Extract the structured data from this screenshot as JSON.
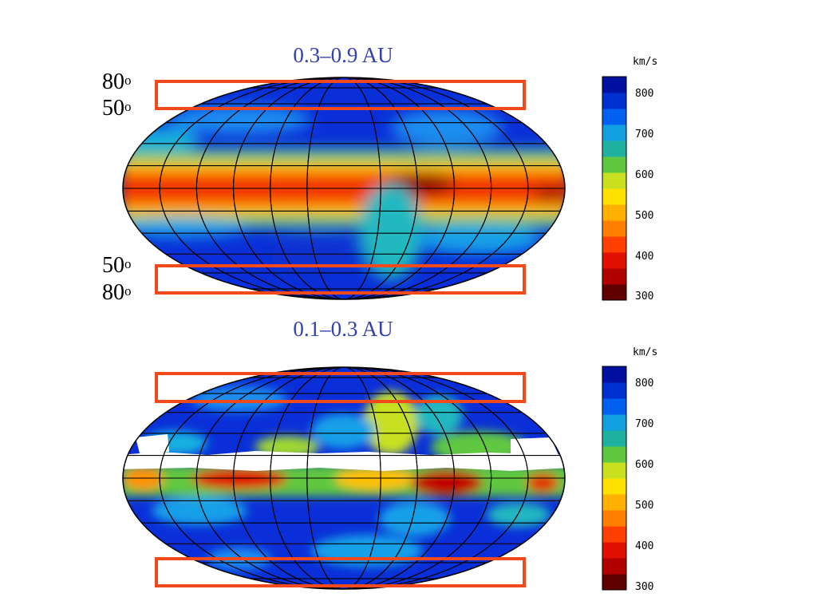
{
  "panels": [
    {
      "title": "0.3–0.9 AU",
      "lat_labels": [
        "80",
        "50",
        "50",
        "80"
      ],
      "lat_unit": "o",
      "colorbar": {
        "unit": "km/s",
        "ticks": [
          "800",
          "700",
          "600",
          "500",
          "400",
          "300"
        ]
      }
    },
    {
      "title": "0.1–0.3 AU",
      "colorbar": {
        "unit": "km/s",
        "ticks": [
          "800",
          "700",
          "600",
          "500",
          "400",
          "300"
        ]
      }
    }
  ],
  "colors": {
    "title": "#3340b0",
    "box": "#f04a1c",
    "scale": [
      "#600000",
      "#b00000",
      "#e01000",
      "#ff4000",
      "#ff8000",
      "#ffb000",
      "#ffe000",
      "#c8e020",
      "#60c840",
      "#20b0a0",
      "#10a0e0",
      "#0060f0",
      "#0030d0",
      "#0010a0"
    ]
  },
  "chart_data": [
    {
      "type": "heatmap",
      "title": "0.3–0.9 AU",
      "projection": "mollweide",
      "quantity": "km/s",
      "value_range": [
        300,
        850
      ],
      "colorbar_ticks": [
        800,
        700,
        600,
        500,
        400,
        300
      ],
      "highlighted_latitude_bands_deg": [
        [
          50,
          80
        ],
        [
          -50,
          -80
        ]
      ],
      "grid": true,
      "colorbar_position": "right"
    },
    {
      "type": "heatmap",
      "title": "0.1–0.3 AU",
      "projection": "mollweide",
      "quantity": "km/s",
      "value_range": [
        300,
        850
      ],
      "colorbar_ticks": [
        800,
        700,
        600,
        500,
        400,
        300
      ],
      "highlighted_latitude_bands_deg": [
        [
          50,
          80
        ],
        [
          -50,
          -80
        ]
      ],
      "grid": true,
      "colorbar_position": "right"
    }
  ]
}
